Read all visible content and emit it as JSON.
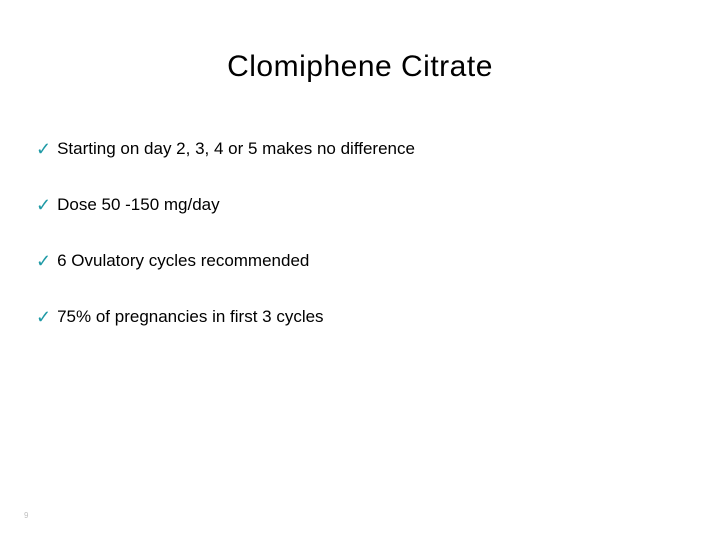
{
  "slide": {
    "title": "Clomiphene Citrate",
    "title_color": "#000000",
    "title_fontsize": 30,
    "bullets": [
      {
        "text": "Starting on day 2, 3, 4 or 5 makes no difference"
      },
      {
        "text": "Dose 50 -150 mg/day"
      },
      {
        "text": "6 Ovulatory cycles recommended"
      },
      {
        "text": "75% of pregnancies in first 3 cycles"
      }
    ],
    "bullet_marker": "✓",
    "bullet_marker_color": "#1f9aa6",
    "bullet_text_color": "#000000",
    "bullet_fontsize": 17,
    "background_color": "#ffffff",
    "page_number": "9",
    "page_number_color": "#bfbfbf"
  }
}
